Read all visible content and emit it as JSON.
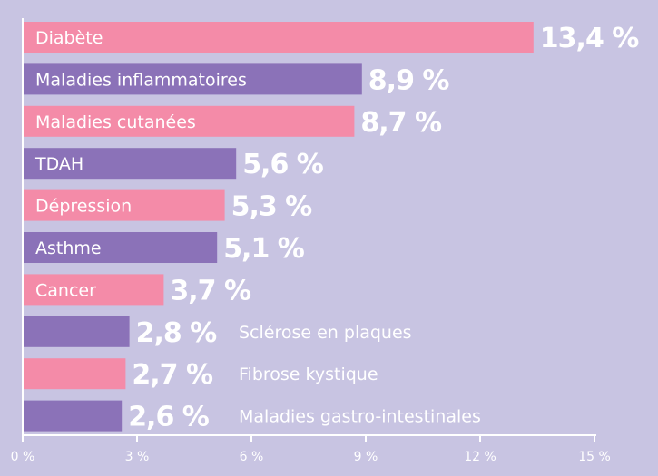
{
  "chart_data": {
    "type": "bar",
    "orientation": "horizontal",
    "title": "",
    "xlabel": "",
    "ylabel": "",
    "xlim": [
      0,
      15
    ],
    "grid": false,
    "legend": "none",
    "categories": [
      "Diabète",
      "Maladies inflammatoires",
      "Maladies cutanées",
      "TDAH",
      "Dépression",
      "Asthme",
      "Cancer",
      "Sclérose en plaques",
      "Fibrose kystique",
      "Maladies gastro-intestinales"
    ],
    "values": [
      13.4,
      8.9,
      8.7,
      5.6,
      5.3,
      5.1,
      3.7,
      2.8,
      2.7,
      2.6
    ],
    "value_labels": [
      "13,4 %",
      "8,9 %",
      "8,7 %",
      "5,6 %",
      "5,3 %",
      "5,1 %",
      "3,7 %",
      "2,8 %",
      "2,7 %",
      "2,6 %"
    ],
    "bar_colors": [
      "#f48ba8",
      "#8b72b8",
      "#f48ba8",
      "#8b72b8",
      "#f48ba8",
      "#8b72b8",
      "#f48ba8",
      "#8b72b8",
      "#f48ba8",
      "#8b72b8"
    ],
    "ticks": [
      0,
      3,
      6,
      9,
      12,
      15
    ],
    "tick_labels": [
      "0 %",
      "3 %",
      "6 %",
      "9 %",
      "12 %",
      "15 %"
    ]
  },
  "colors": {
    "background": "#c8c4e2",
    "axis": "#ffffff"
  }
}
